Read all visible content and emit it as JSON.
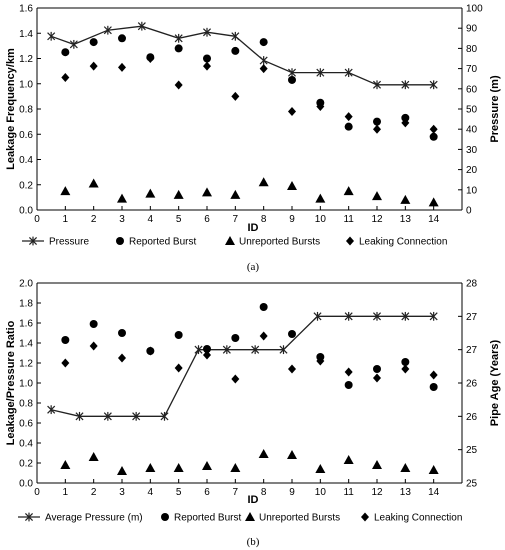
{
  "chart_data": [
    {
      "type": "line",
      "panel_label": "(a)",
      "xlabel": "ID",
      "ylabel": "Leakage Frequency/km",
      "ylabel_right": "Pressure (m)",
      "xlim": [
        0,
        15
      ],
      "ylim": [
        0,
        1.6
      ],
      "ylim_right": [
        0,
        100
      ],
      "x_ticks": [
        0,
        1,
        2,
        3,
        4,
        5,
        6,
        7,
        8,
        9,
        10,
        11,
        12,
        13,
        14
      ],
      "y_ticks": [
        "0.0",
        "0.2",
        "0.4",
        "0.6",
        "0.8",
        "1.0",
        "1.2",
        "1.4",
        "1.6"
      ],
      "y_ticks_right": [
        "0",
        "10",
        "20",
        "30",
        "40",
        "50",
        "60",
        "70",
        "80",
        "90",
        "100"
      ],
      "grid": false,
      "legend_position": "bottom",
      "series": [
        {
          "name": "Pressure",
          "marker": "star",
          "axis": "right",
          "connected": true,
          "points": [
            [
              0.5,
              86
            ],
            [
              1.3,
              82
            ],
            [
              2.5,
              89
            ],
            [
              3.7,
              91
            ],
            [
              5.0,
              85
            ],
            [
              6.0,
              88
            ],
            [
              7.0,
              86
            ],
            [
              8.0,
              74
            ],
            [
              9.0,
              68
            ],
            [
              10.0,
              68
            ],
            [
              11.0,
              68
            ],
            [
              12.0,
              62
            ],
            [
              13.0,
              62
            ],
            [
              14.0,
              62
            ]
          ]
        },
        {
          "name": "Reported Burst",
          "marker": "circle",
          "axis": "left",
          "points": [
            [
              1,
              1.25
            ],
            [
              2,
              1.33
            ],
            [
              3,
              1.36
            ],
            [
              4,
              1.21
            ],
            [
              5,
              1.28
            ],
            [
              6,
              1.2
            ],
            [
              7,
              1.26
            ],
            [
              8,
              1.33
            ],
            [
              9,
              1.03
            ],
            [
              10,
              0.85
            ],
            [
              11,
              0.66
            ],
            [
              12,
              0.7
            ],
            [
              13,
              0.73
            ],
            [
              14,
              0.58
            ]
          ]
        },
        {
          "name": "Unreported Bursts",
          "marker": "triangle",
          "axis": "left",
          "points": [
            [
              1,
              0.15
            ],
            [
              2,
              0.21
            ],
            [
              3,
              0.09
            ],
            [
              4,
              0.13
            ],
            [
              5,
              0.12
            ],
            [
              6,
              0.14
            ],
            [
              7,
              0.12
            ],
            [
              8,
              0.22
            ],
            [
              9,
              0.19
            ],
            [
              10,
              0.09
            ],
            [
              11,
              0.15
            ],
            [
              12,
              0.11
            ],
            [
              13,
              0.08
            ],
            [
              14,
              0.06
            ]
          ]
        },
        {
          "name": "Leaking Connection",
          "marker": "diamond",
          "axis": "left",
          "points": [
            [
              1,
              1.05
            ],
            [
              2,
              1.14
            ],
            [
              3,
              1.13
            ],
            [
              4,
              1.2
            ],
            [
              5,
              0.99
            ],
            [
              6,
              1.14
            ],
            [
              7,
              0.9
            ],
            [
              8,
              1.12
            ],
            [
              9,
              0.78
            ],
            [
              10,
              0.82
            ],
            [
              11,
              0.74
            ],
            [
              12,
              0.64
            ],
            [
              13,
              0.69
            ],
            [
              14,
              0.64
            ]
          ]
        }
      ]
    },
    {
      "type": "line",
      "panel_label": "(b)",
      "xlabel": "ID",
      "ylabel": "Leakage/Pressure Ratio",
      "ylabel_right": "Pipe Age (Years)",
      "xlim": [
        0,
        15
      ],
      "ylim": [
        0,
        2.0
      ],
      "ylim_right": [
        25,
        28
      ],
      "x_ticks": [
        0,
        1,
        2,
        3,
        4,
        5,
        6,
        7,
        8,
        9,
        10,
        11,
        12,
        13,
        14
      ],
      "y_ticks": [
        "0.0",
        "0.2",
        "0.4",
        "0.6",
        "0.8",
        "1.0",
        "1.2",
        "1.4",
        "1.6",
        "1.8",
        "2.0"
      ],
      "y_ticks_right_values": [
        25,
        25.5,
        26,
        26.5,
        27,
        27.5,
        28
      ],
      "y_ticks_right": [
        "25",
        "25",
        "26",
        "26",
        "27",
        "27",
        "28"
      ],
      "grid": false,
      "legend_position": "bottom",
      "series": [
        {
          "name": "Average Pressure (m)",
          "marker": "star",
          "axis": "right",
          "connected": true,
          "points": [
            [
              0.5,
              26.1
            ],
            [
              1.5,
              26.0
            ],
            [
              2.5,
              26.0
            ],
            [
              3.5,
              26.0
            ],
            [
              4.5,
              26.0
            ],
            [
              5.7,
              27.0
            ],
            [
              6.7,
              27.0
            ],
            [
              7.7,
              27.0
            ],
            [
              8.7,
              27.0
            ],
            [
              9.9,
              27.5
            ],
            [
              11.0,
              27.5
            ],
            [
              12.0,
              27.5
            ],
            [
              13.0,
              27.5
            ],
            [
              14.0,
              27.5
            ]
          ]
        },
        {
          "name": "Reported Burst",
          "marker": "circle",
          "axis": "left",
          "points": [
            [
              1,
              1.43
            ],
            [
              2,
              1.59
            ],
            [
              3,
              1.5
            ],
            [
              4,
              1.32
            ],
            [
              5,
              1.48
            ],
            [
              6,
              1.34
            ],
            [
              7,
              1.45
            ],
            [
              8,
              1.76
            ],
            [
              9,
              1.49
            ],
            [
              10,
              1.26
            ],
            [
              11,
              0.98
            ],
            [
              12,
              1.14
            ],
            [
              13,
              1.21
            ],
            [
              14,
              0.96
            ]
          ]
        },
        {
          "name": "Unreported Bursts",
          "marker": "triangle",
          "axis": "left",
          "points": [
            [
              1,
              0.18
            ],
            [
              2,
              0.26
            ],
            [
              3,
              0.12
            ],
            [
              4,
              0.15
            ],
            [
              5,
              0.15
            ],
            [
              6,
              0.17
            ],
            [
              7,
              0.15
            ],
            [
              8,
              0.29
            ],
            [
              9,
              0.28
            ],
            [
              10,
              0.14
            ],
            [
              11,
              0.23
            ],
            [
              12,
              0.18
            ],
            [
              13,
              0.15
            ],
            [
              14,
              0.13
            ]
          ]
        },
        {
          "name": "Leaking Connection",
          "marker": "diamond",
          "axis": "left",
          "points": [
            [
              1,
              1.2
            ],
            [
              2,
              1.37
            ],
            [
              3,
              1.25
            ],
            [
              4,
              1.32
            ],
            [
              5,
              1.15
            ],
            [
              6,
              1.28
            ],
            [
              7,
              1.04
            ],
            [
              8,
              1.47
            ],
            [
              9,
              1.14
            ],
            [
              10,
              1.22
            ],
            [
              11,
              1.11
            ],
            [
              12,
              1.05
            ],
            [
              13,
              1.14
            ],
            [
              14,
              1.08
            ]
          ]
        }
      ]
    }
  ]
}
